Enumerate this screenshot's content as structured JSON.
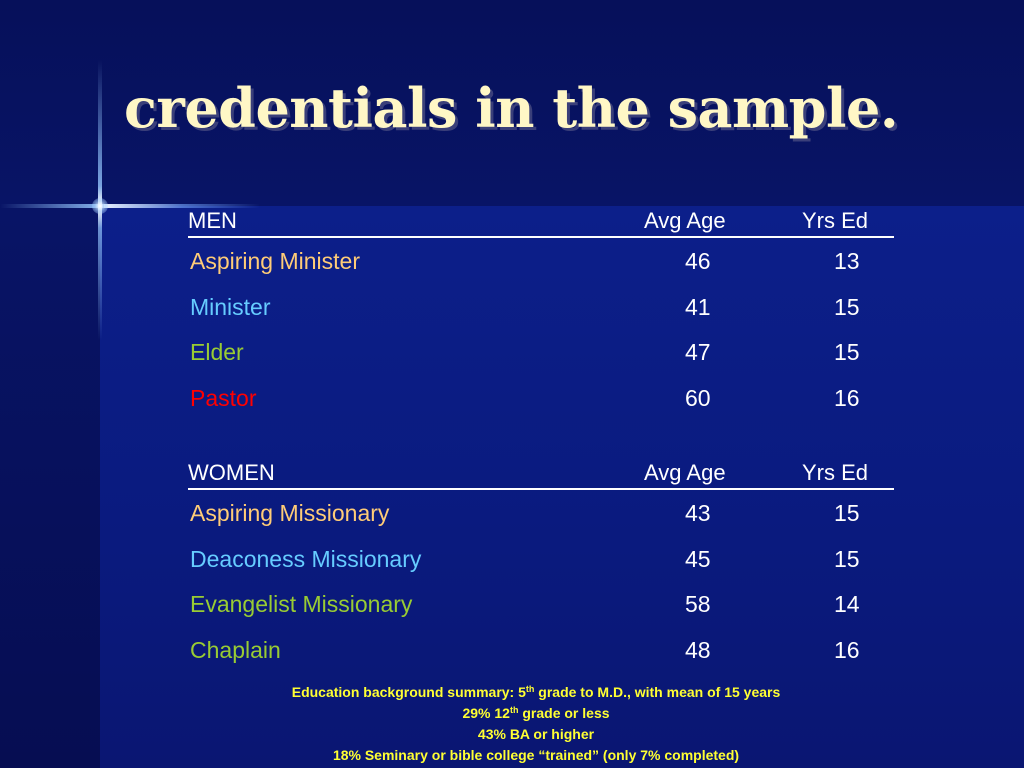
{
  "title": "credentials in the sample.",
  "colors": {
    "background": "#0a1a7e",
    "title": "#fff7c6",
    "aspiring": "#ffcc77",
    "minister": "#66ccff",
    "elder": "#99cc33",
    "pastor": "#ff0000",
    "note": "#ffff33"
  },
  "men": {
    "header": {
      "label": "MEN",
      "avg_age": "Avg Age",
      "yrs_ed": "Yrs Ed"
    },
    "rows": [
      {
        "role": "Aspiring Minister",
        "avg_age": "46",
        "yrs_ed": "13"
      },
      {
        "role": "Minister",
        "avg_age": "41",
        "yrs_ed": "15"
      },
      {
        "role": "Elder",
        "avg_age": "47",
        "yrs_ed": "15"
      },
      {
        "role": "Pastor",
        "avg_age": "60",
        "yrs_ed": "16"
      }
    ]
  },
  "women": {
    "header": {
      "label": "WOMEN",
      "avg_age": "Avg Age",
      "yrs_ed": "Yrs Ed"
    },
    "rows": [
      {
        "role": "Aspiring Missionary",
        "avg_age": "43",
        "yrs_ed": "15"
      },
      {
        "role": "Deaconess Missionary",
        "avg_age": "45",
        "yrs_ed": "15"
      },
      {
        "role": "Evangelist Missionary",
        "avg_age": "58",
        "yrs_ed": "14"
      },
      {
        "role": "Chaplain",
        "avg_age": "48",
        "yrs_ed": "16"
      }
    ]
  },
  "summary": {
    "line1_a": "Education background summary: 5",
    "line1_sup": "th",
    "line1_b": " grade to M.D., with mean of 15 years",
    "line2_a": "29% 12",
    "line2_sup": "th",
    "line2_b": " grade or less",
    "line3": "43% BA or higher",
    "line4": "18% Seminary or bible college “trained” (only 7% completed)"
  }
}
